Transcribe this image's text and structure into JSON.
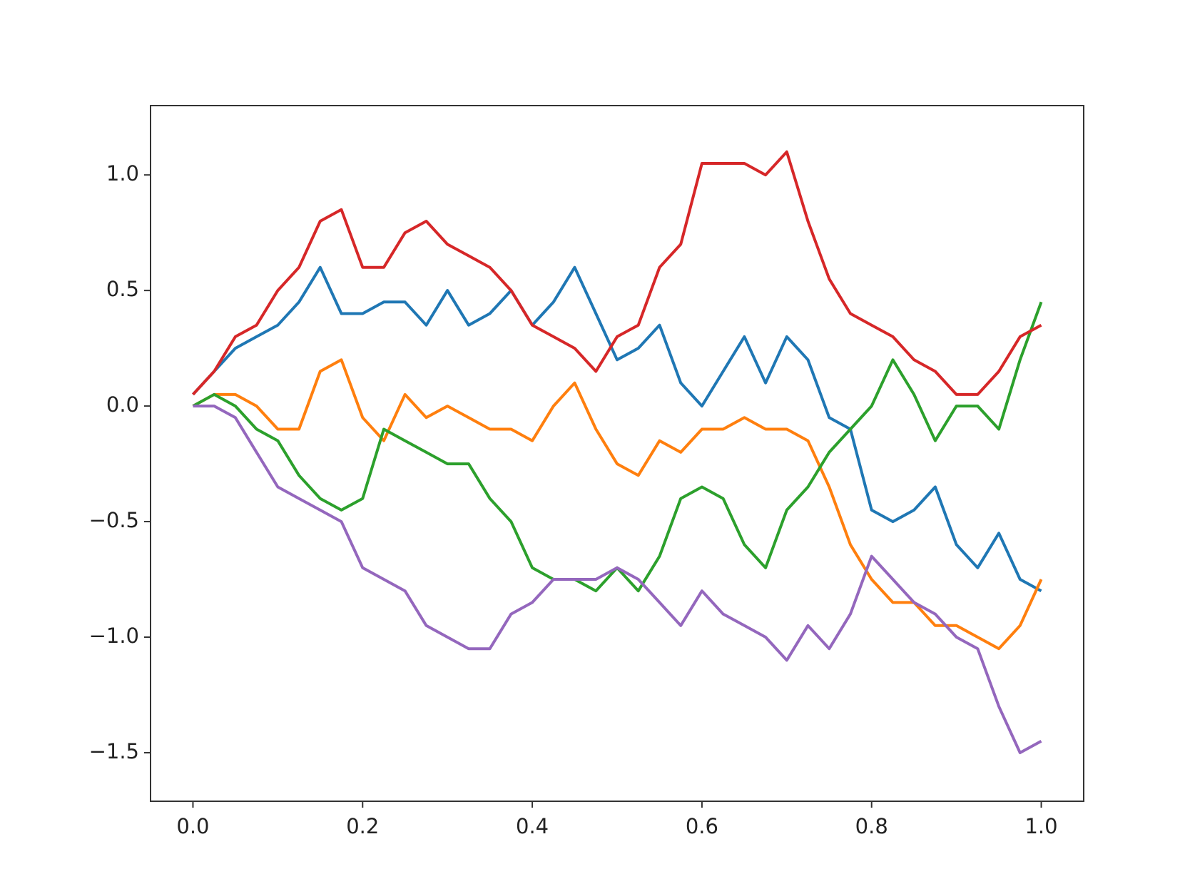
{
  "chart_data": {
    "type": "line",
    "x": [
      0,
      0.025,
      0.05,
      0.075,
      0.1,
      0.125,
      0.15,
      0.175,
      0.2,
      0.225,
      0.25,
      0.275,
      0.3,
      0.325,
      0.35,
      0.375,
      0.4,
      0.425,
      0.45,
      0.475,
      0.5,
      0.525,
      0.55,
      0.575,
      0.6,
      0.625,
      0.65,
      0.675,
      0.7,
      0.725,
      0.75,
      0.775,
      0.8,
      0.825,
      0.85,
      0.875,
      0.9,
      0.925,
      0.95,
      0.975,
      1.0
    ],
    "series": [
      {
        "color": "#1f77b4",
        "values": [
          0.05,
          0.15,
          0.25,
          0.3,
          0.35,
          0.45,
          0.6,
          0.4,
          0.4,
          0.45,
          0.45,
          0.35,
          0.5,
          0.35,
          0.4,
          0.5,
          0.35,
          0.45,
          0.6,
          0.4,
          0.2,
          0.25,
          0.35,
          0.1,
          0.0,
          0.15,
          0.3,
          0.1,
          0.3,
          0.2,
          -0.05,
          -0.1,
          -0.45,
          -0.5,
          -0.45,
          -0.35,
          -0.6,
          -0.7,
          -0.55,
          -0.75,
          -0.8
        ]
      },
      {
        "color": "#ff7f0e",
        "values": [
          0.0,
          0.05,
          0.05,
          0.0,
          -0.1,
          -0.1,
          0.15,
          0.2,
          -0.05,
          -0.15,
          0.05,
          -0.05,
          0.0,
          -0.05,
          -0.1,
          -0.1,
          -0.15,
          0.0,
          0.1,
          -0.1,
          -0.25,
          -0.3,
          -0.15,
          -0.2,
          -0.1,
          -0.1,
          -0.05,
          -0.1,
          -0.1,
          -0.15,
          -0.35,
          -0.6,
          -0.75,
          -0.85,
          -0.85,
          -0.95,
          -0.95,
          -1.0,
          -1.05,
          -0.95,
          -0.75
        ]
      },
      {
        "color": "#2ca02c",
        "values": [
          0.0,
          0.05,
          0.0,
          -0.1,
          -0.15,
          -0.3,
          -0.4,
          -0.45,
          -0.4,
          -0.1,
          -0.15,
          -0.2,
          -0.25,
          -0.25,
          -0.4,
          -0.5,
          -0.7,
          -0.75,
          -0.75,
          -0.8,
          -0.7,
          -0.8,
          -0.65,
          -0.4,
          -0.35,
          -0.4,
          -0.6,
          -0.7,
          -0.45,
          -0.35,
          -0.2,
          -0.1,
          0.0,
          0.2,
          0.05,
          -0.15,
          0.0,
          0.0,
          -0.1,
          0.2,
          0.45
        ]
      },
      {
        "color": "#d62728",
        "values": [
          0.05,
          0.15,
          0.3,
          0.35,
          0.5,
          0.6,
          0.8,
          0.85,
          0.6,
          0.6,
          0.75,
          0.8,
          0.7,
          0.65,
          0.6,
          0.5,
          0.35,
          0.3,
          0.25,
          0.15,
          0.3,
          0.35,
          0.6,
          0.7,
          1.05,
          1.05,
          1.05,
          1.0,
          1.1,
          0.8,
          0.55,
          0.4,
          0.35,
          0.3,
          0.2,
          0.15,
          0.05,
          0.05,
          0.15,
          0.3,
          0.35
        ]
      },
      {
        "color": "#9467bd",
        "values": [
          0.0,
          0.0,
          -0.05,
          -0.2,
          -0.35,
          -0.4,
          -0.45,
          -0.5,
          -0.7,
          -0.75,
          -0.8,
          -0.95,
          -1.0,
          -1.05,
          -1.05,
          -0.9,
          -0.85,
          -0.75,
          -0.75,
          -0.75,
          -0.7,
          -0.75,
          -0.85,
          -0.95,
          -0.8,
          -0.9,
          -0.95,
          -1.0,
          -1.1,
          -0.95,
          -1.05,
          -0.9,
          -0.65,
          -0.75,
          -0.85,
          -0.9,
          -1.0,
          -1.05,
          -1.3,
          -1.5,
          -1.45
        ]
      }
    ],
    "xlim": [
      -0.05,
      1.05
    ],
    "ylim": [
      -1.71,
      1.3
    ],
    "xticks": [
      {
        "value": 0,
        "label": "0.0"
      },
      {
        "value": 0.2,
        "label": "0.2"
      },
      {
        "value": 0.4,
        "label": "0.4"
      },
      {
        "value": 0.6,
        "label": "0.6"
      },
      {
        "value": 0.8,
        "label": "0.8"
      },
      {
        "value": 1,
        "label": "1.0"
      }
    ],
    "yticks": [
      {
        "value": -1.5,
        "label": "−1.5"
      },
      {
        "value": -1,
        "label": "−1.0"
      },
      {
        "value": -0.5,
        "label": "−0.5"
      },
      {
        "value": 0,
        "label": "0.0"
      },
      {
        "value": 0.5,
        "label": "0.5"
      },
      {
        "value": 1,
        "label": "1.0"
      }
    ],
    "grid": false
  }
}
